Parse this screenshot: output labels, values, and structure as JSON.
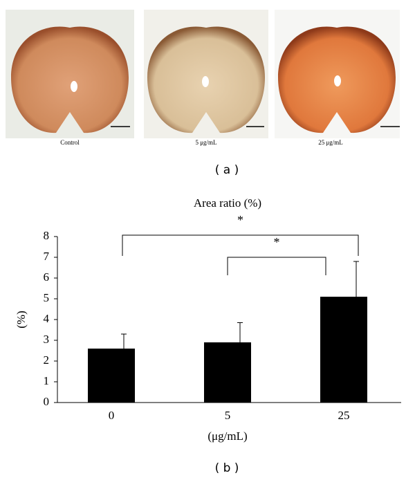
{
  "panel_a": {
    "images": [
      "Control",
      "5 μg/mL",
      "25 μg/mL"
    ],
    "label": "( a )"
  },
  "chart_data": {
    "type": "bar",
    "title": "Area ratio (%)",
    "ylabel": "(%)",
    "xlabel": "(μg/mL)",
    "categories": [
      "0",
      "5",
      "25"
    ],
    "values": [
      2.6,
      2.9,
      5.1
    ],
    "errors": [
      0.7,
      0.95,
      1.7
    ],
    "color": "#000000",
    "ylim": [
      0,
      8
    ],
    "yticks": [
      0,
      1,
      2,
      3,
      4,
      5,
      6,
      7,
      8
    ],
    "comparisons": [
      {
        "between": [
          "0",
          "25"
        ],
        "label": "*"
      },
      {
        "between": [
          "5",
          "25"
        ],
        "label": "*"
      }
    ]
  },
  "panel_b_label": "( b )"
}
